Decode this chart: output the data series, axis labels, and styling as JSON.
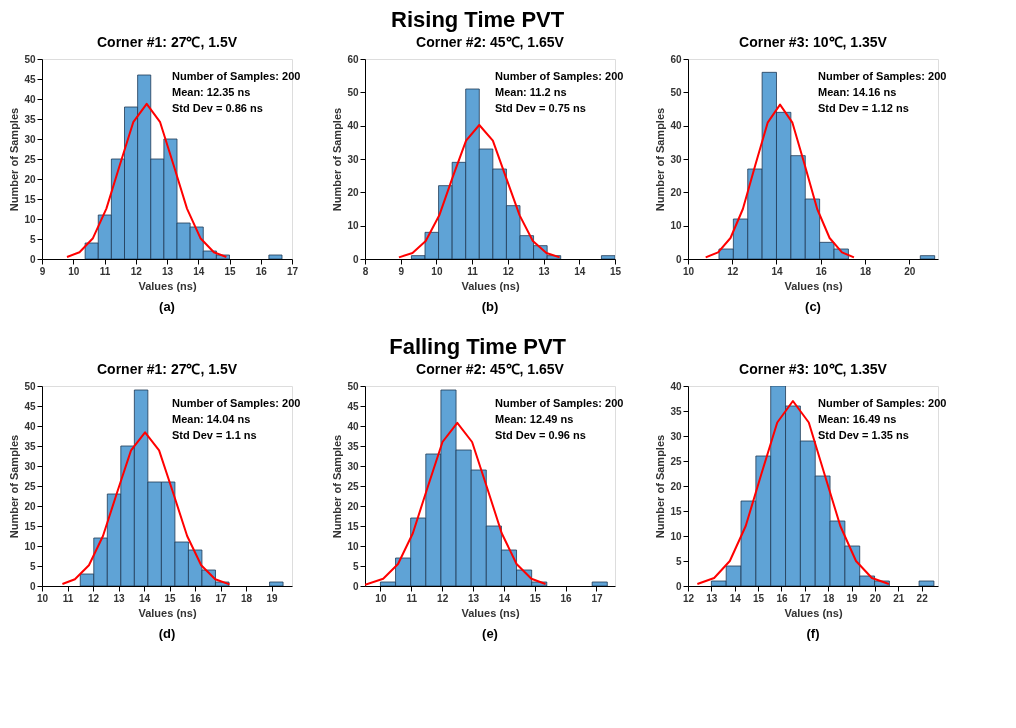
{
  "chart_data": [
    {
      "type": "histogram",
      "title": "Corner #1: 27℃, 1.5V",
      "xlabel": "Values (ns)",
      "ylabel": "Number of Samples",
      "color": "#5fa3d6",
      "bins": [
        10.38,
        10.8,
        11.22,
        11.64,
        12.06,
        12.48,
        12.9,
        13.32,
        13.74,
        14.16,
        14.58,
        15.0,
        15.42,
        15.84,
        16.26,
        16.68
      ],
      "values": [
        4,
        11,
        25,
        38,
        46,
        25,
        30,
        9,
        8,
        2,
        1,
        0,
        0,
        0,
        1
      ],
      "series": [
        {
          "type": "line",
          "color": "#ff0000",
          "x": [
            9.8,
            10.2,
            10.63,
            11.06,
            11.49,
            11.92,
            12.35,
            12.78,
            13.21,
            13.64,
            14.07,
            14.5,
            14.9
          ],
          "values": [
            0.5,
            1.7,
            5.2,
            12.6,
            23.5,
            34.2,
            38.8,
            34.2,
            23.5,
            12.6,
            5.2,
            1.7,
            0.5
          ]
        }
      ],
      "xlim": [
        9,
        17
      ],
      "xticks": [
        9,
        10,
        11,
        12,
        13,
        14,
        15,
        16,
        17
      ],
      "ylim": [
        0,
        50
      ],
      "yticks": [
        0,
        5,
        10,
        15,
        20,
        25,
        30,
        35,
        40,
        45,
        50
      ],
      "annotations": [
        "Rising Time PVT",
        "Number of Samples: 200",
        "Mean: 12.35 ns",
        "Std Dev = 0.86 ns",
        "(a)"
      ]
    },
    {
      "type": "histogram",
      "title": "Corner #2: 45℃, 1.65V",
      "xlabel": "Values (ns)",
      "ylabel": "Number of Samples",
      "color": "#5fa3d6",
      "bins": [
        9.3,
        9.68,
        10.06,
        10.44,
        10.82,
        11.2,
        11.58,
        11.96,
        12.34,
        12.72,
        13.1,
        13.48,
        13.86,
        14.24,
        14.62,
        15.0
      ],
      "values": [
        1,
        8,
        22,
        29,
        51,
        33,
        27,
        16,
        7,
        4,
        1,
        0,
        0,
        0,
        1
      ],
      "series": [
        {
          "type": "line",
          "color": "#ff0000",
          "x": [
            8.95,
            9.33,
            9.7,
            10.08,
            10.45,
            10.83,
            11.2,
            11.58,
            11.95,
            12.33,
            12.7,
            13.08,
            13.45
          ],
          "values": [
            0.5,
            1.8,
            5.4,
            13.1,
            24.4,
            35.5,
            40.2,
            35.5,
            24.4,
            13.1,
            5.4,
            1.8,
            0.5
          ]
        }
      ],
      "xlim": [
        8,
        15
      ],
      "xticks": [
        8,
        9,
        10,
        11,
        12,
        13,
        14,
        15
      ],
      "ylim": [
        0,
        60
      ],
      "yticks": [
        0,
        10,
        20,
        30,
        40,
        50,
        60
      ],
      "annotations": [
        "Number of Samples: 200",
        "Mean: 11.2 ns",
        "Std Dev = 0.75 ns",
        "(b)"
      ]
    },
    {
      "type": "histogram",
      "title": "Corner #3: 10℃, 1.35V",
      "xlabel": "Values (ns)",
      "ylabel": "Number of Samples",
      "color": "#5fa3d6",
      "bins": [
        11.4,
        12.05,
        12.7,
        13.35,
        14.0,
        14.65,
        15.3,
        15.95,
        16.6,
        17.25,
        17.9,
        18.55,
        19.2,
        19.85,
        20.5,
        21.15
      ],
      "values": [
        3,
        12,
        27,
        56,
        44,
        31,
        18,
        5,
        3,
        0,
        0,
        0,
        0,
        0,
        1
      ],
      "series": [
        {
          "type": "line",
          "color": "#ff0000",
          "x": [
            10.8,
            11.36,
            11.92,
            12.48,
            13.04,
            13.6,
            14.16,
            14.72,
            15.28,
            15.84,
            16.4,
            16.96,
            17.5
          ],
          "values": [
            0.5,
            2,
            6.3,
            15,
            28.1,
            40.9,
            46.3,
            40.9,
            28.1,
            15,
            6.3,
            2,
            0.5
          ]
        }
      ],
      "xlim": [
        10,
        21.3
      ],
      "xticks": [
        10,
        12,
        14,
        16,
        18,
        20
      ],
      "ylim": [
        0,
        60
      ],
      "yticks": [
        0,
        10,
        20,
        30,
        40,
        50,
        60
      ],
      "annotations": [
        "Number of Samples: 200",
        "Mean: 14.16 ns",
        "Std Dev = 1.12 ns",
        "(c)"
      ]
    },
    {
      "type": "histogram",
      "title": "Corner #1: 27℃, 1.5V",
      "xlabel": "Values (ns)",
      "ylabel": "Number of Samples",
      "color": "#5fa3d6",
      "bins": [
        11.5,
        12.03,
        12.56,
        13.09,
        13.62,
        14.15,
        14.68,
        15.21,
        15.74,
        16.27,
        16.8,
        17.33,
        17.86,
        18.39,
        18.92,
        19.45
      ],
      "values": [
        3,
        12,
        23,
        35,
        49,
        26,
        26,
        11,
        9,
        4,
        1,
        0,
        0,
        0,
        1
      ],
      "series": [
        {
          "type": "line",
          "color": "#ff0000",
          "x": [
            10.8,
            11.29,
            11.84,
            12.39,
            12.94,
            13.49,
            14.04,
            14.59,
            15.14,
            15.69,
            16.24,
            16.79,
            17.35
          ],
          "values": [
            0.5,
            1.7,
            5.2,
            12.5,
            23.3,
            33.9,
            38.4,
            33.9,
            23.3,
            12.5,
            5.2,
            1.7,
            0.4
          ]
        }
      ],
      "xlim": [
        10,
        19.8
      ],
      "xticks": [
        10,
        11,
        12,
        13,
        14,
        15,
        16,
        17,
        18,
        19
      ],
      "ylim": [
        0,
        50
      ],
      "yticks": [
        0,
        5,
        10,
        15,
        20,
        25,
        30,
        35,
        40,
        45,
        50
      ],
      "annotations": [
        "Falling Time PVT",
        "Number of Samples: 200",
        "Mean: 14.04 ns",
        "Std Dev = 1.1 ns",
        "(d)"
      ]
    },
    {
      "type": "histogram",
      "title": "Corner #2: 45℃, 1.65V",
      "xlabel": "Values (ns)",
      "ylabel": "Number of Samples",
      "color": "#5fa3d6",
      "bins": [
        10.0,
        10.49,
        10.98,
        11.47,
        11.96,
        12.45,
        12.94,
        13.43,
        13.92,
        14.41,
        14.9,
        15.39,
        15.88,
        16.37,
        16.86,
        17.35
      ],
      "values": [
        1,
        7,
        17,
        33,
        49,
        34,
        29,
        15,
        9,
        4,
        1,
        0,
        0,
        0,
        1
      ],
      "series": [
        {
          "type": "line",
          "color": "#ff0000",
          "x": [
            9.5,
            10.09,
            10.57,
            11.05,
            11.53,
            12.01,
            12.49,
            12.97,
            13.45,
            13.93,
            14.41,
            14.89,
            15.35
          ],
          "values": [
            0.3,
            1.8,
            5.5,
            13.2,
            24.7,
            36,
            40.8,
            36,
            24.7,
            13.2,
            5.5,
            1.8,
            0.5
          ]
        }
      ],
      "xlim": [
        9.5,
        17.6
      ],
      "xticks": [
        10,
        11,
        12,
        13,
        14,
        15,
        16,
        17
      ],
      "ylim": [
        0,
        50
      ],
      "yticks": [
        0,
        5,
        10,
        15,
        20,
        25,
        30,
        35,
        40,
        45,
        50
      ],
      "annotations": [
        "Number of Samples: 200",
        "Mean: 12.49 ns",
        "Std Dev = 0.96 ns",
        "(e)"
      ]
    },
    {
      "type": "histogram",
      "title": "Corner #3: 10℃, 1.35V",
      "xlabel": "Values (ns)",
      "ylabel": "Number of Samples",
      "color": "#5fa3d6",
      "bins": [
        13.0,
        13.635,
        14.27,
        14.905,
        15.54,
        16.175,
        16.81,
        17.445,
        18.08,
        18.715,
        19.35,
        19.985,
        20.62,
        21.255,
        21.89,
        22.525
      ],
      "values": [
        1,
        4,
        17,
        26,
        40,
        36,
        29,
        22,
        13,
        8,
        2,
        1,
        0,
        0,
        1
      ],
      "series": [
        {
          "type": "line",
          "color": "#ff0000",
          "x": [
            12.4,
            13.12,
            13.79,
            14.47,
            15.14,
            15.82,
            16.49,
            17.17,
            17.84,
            18.52,
            19.19,
            19.87,
            20.6
          ],
          "values": [
            0.4,
            1.6,
            5,
            12,
            22.4,
            32.7,
            37,
            32.7,
            22.4,
            12,
            5,
            1.6,
            0.4
          ]
        }
      ],
      "xlim": [
        12,
        22.7
      ],
      "xticks": [
        12,
        13,
        14,
        15,
        16,
        17,
        18,
        19,
        20,
        21,
        22
      ],
      "ylim": [
        0,
        40
      ],
      "yticks": [
        0,
        5,
        10,
        15,
        20,
        25,
        30,
        35,
        40
      ],
      "annotations": [
        "Number of Samples: 200",
        "Mean: 16.49 ns",
        "Std Dev = 1.35 ns",
        "(f)"
      ]
    }
  ]
}
